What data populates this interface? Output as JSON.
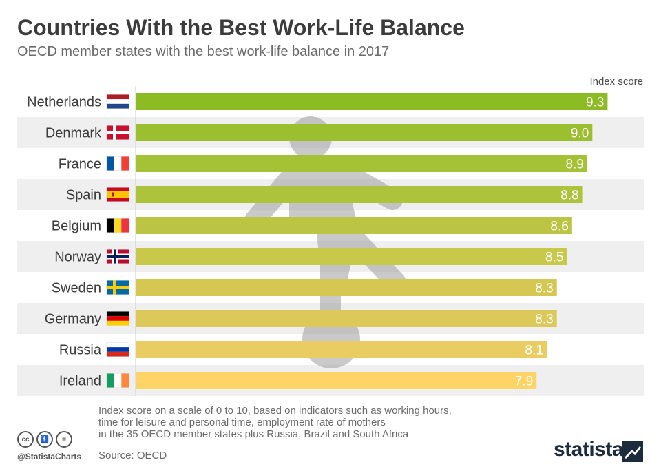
{
  "chart_data": {
    "type": "bar",
    "orientation": "horizontal",
    "title": "Countries With the Best Work-Life Balance",
    "subtitle": "OECD member states with the best work-life balance in 2017",
    "value_axis_label": "Index score",
    "xlim": [
      0,
      10
    ],
    "categories": [
      "Netherlands",
      "Denmark",
      "France",
      "Spain",
      "Belgium",
      "Norway",
      "Sweden",
      "Germany",
      "Russia",
      "Ireland"
    ],
    "values": [
      9.3,
      9.0,
      8.9,
      8.8,
      8.6,
      8.5,
      8.3,
      8.3,
      8.1,
      7.9
    ],
    "value_labels": [
      "9.3",
      "9.0",
      "8.9",
      "8.8",
      "8.6",
      "8.5",
      "8.3",
      "8.3",
      "8.1",
      "7.9"
    ],
    "bar_colors": [
      "#8dbb24",
      "#9cbf2f",
      "#a5c136",
      "#adc33b",
      "#bbc543",
      "#c8c84b",
      "#d6c652",
      "#ddc85a",
      "#e9cc62",
      "#fed467"
    ],
    "flags": [
      "nl-flag-icon",
      "dk-flag-icon",
      "fr-flag-icon",
      "es-flag-icon",
      "be-flag-icon",
      "no-flag-icon",
      "se-flag-icon",
      "de-flag-icon",
      "ru-flag-icon",
      "ie-flag-icon"
    ]
  },
  "notes": {
    "line1": "Index score on a scale of 0 to 10, based on indicators such as working hours,",
    "line2": "time for leisure and personal time, employment rate of mothers",
    "line3": "in the 35 OECD member states plus Russia, Brazil and South Africa",
    "source": "Source: OECD"
  },
  "footer": {
    "handle": "@StatistaCharts",
    "brand": "statista",
    "license_icons": [
      "cc-icon",
      "by-icon",
      "nd-icon"
    ]
  },
  "colors": {
    "row_alt_bg": "#efefef",
    "bar_label": "#ffffff",
    "title": "#3c3c3c",
    "illustration": "#9e9e9e"
  }
}
